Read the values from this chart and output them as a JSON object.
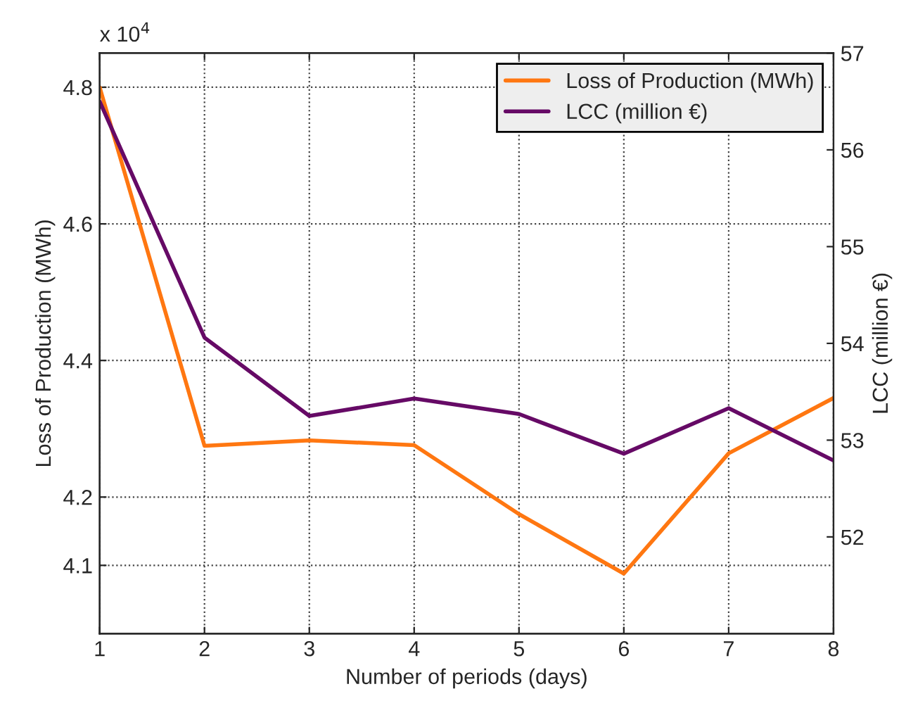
{
  "chart_data": {
    "type": "line",
    "xlabel": "Number of periods (days)",
    "ylabel": "Loss of Production (MWh)",
    "y2label": "LCC (million €)",
    "annotations": [
      "x 10$^{4}$"
    ],
    "x": [
      1,
      2,
      3,
      4,
      5,
      6,
      7,
      8
    ],
    "series": [
      {
        "name": "Loss of Production (MWh)",
        "color": "#ff7711",
        "values": [
          4.8,
          4.275,
          4.283,
          4.276,
          4.175,
          4.088,
          4.264,
          4.345
        ]
      },
      {
        "name": "LCC (million €)",
        "color": "#660a66",
        "axis": "y2",
        "values": [
          56.5,
          54.06,
          53.25,
          53.43,
          53.27,
          52.86,
          53.33,
          52.79
        ]
      }
    ],
    "xlim": [
      1,
      8
    ],
    "xticks": [
      1,
      2,
      3,
      4,
      5,
      6,
      7,
      8
    ],
    "ylim": [
      4.0,
      4.85
    ],
    "yticks": [
      4.1,
      4.2,
      4.4,
      4.6,
      4.8
    ],
    "y2lim": [
      51,
      57
    ],
    "y2ticks": [
      52,
      53,
      54,
      55,
      56,
      57
    ],
    "grid": true,
    "legend": "top right",
    "line_style": "solid",
    "marker": "none"
  }
}
